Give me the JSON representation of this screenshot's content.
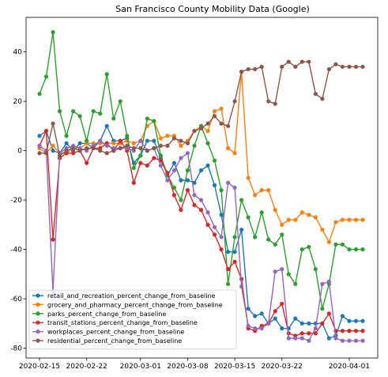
{
  "chart_data": {
    "type": "line",
    "title": "San Francisco County Mobility Data (Google)",
    "xlabel": "",
    "ylabel": "",
    "ylim": [
      -84,
      54
    ],
    "xticks": [
      "2020-02-15",
      "2020-02-22",
      "2020-03-01",
      "2020-03-08",
      "2020-03-15",
      "2020-03-22",
      "2020-04-01"
    ],
    "yticks": [
      40,
      20,
      0,
      -20,
      -40,
      -60,
      -80
    ],
    "grid": false,
    "legend": "lower-left",
    "x": [
      "2020-02-15",
      "2020-02-16",
      "2020-02-17",
      "2020-02-18",
      "2020-02-19",
      "2020-02-20",
      "2020-02-21",
      "2020-02-22",
      "2020-02-23",
      "2020-02-24",
      "2020-02-25",
      "2020-02-26",
      "2020-02-27",
      "2020-02-28",
      "2020-02-29",
      "2020-03-01",
      "2020-03-02",
      "2020-03-03",
      "2020-03-04",
      "2020-03-05",
      "2020-03-06",
      "2020-03-07",
      "2020-03-08",
      "2020-03-09",
      "2020-03-10",
      "2020-03-11",
      "2020-03-12",
      "2020-03-13",
      "2020-03-14",
      "2020-03-15",
      "2020-03-16",
      "2020-03-17",
      "2020-03-18",
      "2020-03-19",
      "2020-03-20",
      "2020-03-21",
      "2020-03-22",
      "2020-03-23",
      "2020-03-24",
      "2020-03-25",
      "2020-03-26",
      "2020-03-27",
      "2020-03-28",
      "2020-03-29",
      "2020-03-30",
      "2020-03-31",
      "2020-04-01",
      "2020-04-02",
      "2020-04-03"
    ],
    "series": [
      {
        "name": "retail_and_recreation_percent_change_from_baseline",
        "color": "#1f77b4",
        "values": [
          6,
          8,
          0,
          -1,
          3,
          0,
          3,
          3,
          1,
          4,
          10,
          4,
          4,
          5,
          -5,
          -2,
          4,
          4,
          -3,
          -10,
          -5,
          -12,
          -12,
          -13,
          -8,
          -6,
          -14,
          -26,
          -41,
          -41,
          -32,
          -64,
          -67,
          -66,
          -70,
          -68,
          -72,
          -72,
          -68,
          -70,
          -70,
          -70,
          -70,
          -76,
          -75,
          -67,
          -69,
          -69,
          -69
        ]
      },
      {
        "name": "grocery_and_pharmacy_percent_change_from_baseline",
        "color": "#ff7f0e",
        "values": [
          1,
          -1,
          2,
          -1,
          -1,
          1,
          1,
          3,
          3,
          3,
          3,
          3,
          3,
          4,
          3,
          4,
          10,
          12,
          5,
          6,
          6,
          2,
          4,
          8,
          10,
          8,
          16,
          17,
          1,
          -1,
          32,
          -11,
          -18,
          -16,
          -16,
          -24,
          -30,
          -28,
          -28,
          -25,
          -26,
          -27,
          -32,
          -37,
          -29,
          -28,
          -28,
          -28,
          -28
        ]
      },
      {
        "name": "parks_percent_change_from_baseline",
        "color": "#2ca02c",
        "values": [
          23,
          30,
          48,
          16,
          6,
          16,
          14,
          4,
          16,
          15,
          31,
          13,
          20,
          6,
          -7,
          -2,
          13,
          12,
          -2,
          -10,
          -15,
          -20,
          -8,
          2,
          10,
          3,
          -4,
          -16,
          -54,
          -35,
          -20,
          -27,
          -35,
          -25,
          -36,
          -38,
          -34,
          -50,
          -54,
          -40,
          -39,
          -48,
          -64,
          -54,
          -38,
          -38,
          -40,
          -40,
          -40
        ]
      },
      {
        "name": "transit_stations_percent_change_from_baseline",
        "color": "#d62728",
        "values": [
          2,
          8,
          -36,
          -3,
          -1,
          -1,
          0,
          -5,
          1,
          1,
          3,
          0,
          4,
          0,
          -13,
          -5,
          -6,
          -3,
          -4,
          -9,
          -18,
          -24,
          -16,
          -22,
          -24,
          -30,
          -34,
          -40,
          -48,
          -45,
          -52,
          -72,
          -73,
          -71,
          -70,
          -65,
          -62,
          -74,
          -75,
          -74,
          -74,
          -74,
          -70,
          -66,
          -73,
          -73,
          -73,
          -73,
          -73
        ]
      },
      {
        "name": "workplaces_percent_change_from_baseline",
        "color": "#9467bd",
        "values": [
          2,
          0,
          -57,
          -1,
          1,
          2,
          1,
          0,
          2,
          4,
          2,
          1,
          1,
          1,
          0,
          4,
          0,
          1,
          -6,
          -12,
          -8,
          -3,
          -1,
          -18,
          -20,
          -25,
          -31,
          -35,
          -13,
          -15,
          -55,
          -71,
          -72,
          -72,
          -70,
          -49,
          -48,
          -76,
          -76,
          -76,
          -77,
          -72,
          -54,
          -53,
          -76,
          -77,
          -77,
          -77,
          -77
        ]
      },
      {
        "name": "residential_percent_change_from_baseline",
        "color": "#8c564b",
        "values": [
          -1,
          -1,
          11,
          -2,
          0,
          1,
          0,
          1,
          1,
          0,
          -1,
          0,
          1,
          2,
          1,
          1,
          0,
          1,
          2,
          2,
          5,
          4,
          3,
          8,
          9,
          11,
          14,
          11,
          10,
          20,
          32,
          33,
          33,
          34,
          20,
          19,
          34,
          36,
          34,
          36,
          36,
          23,
          21,
          33,
          35,
          34,
          34,
          34,
          34
        ]
      }
    ]
  }
}
